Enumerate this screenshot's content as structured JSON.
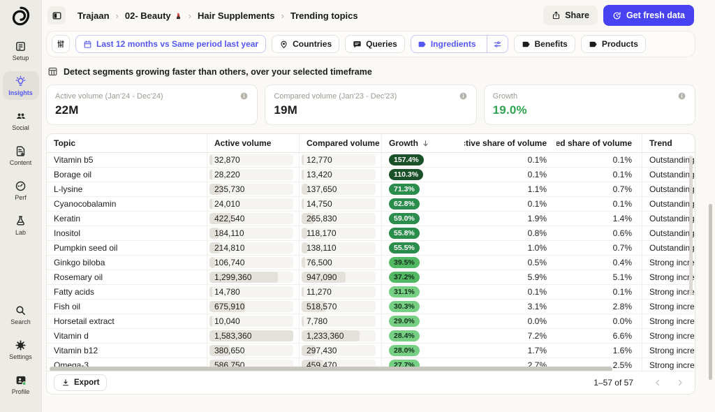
{
  "breadcrumb": {
    "separator": "›",
    "items": [
      "Trajaan",
      "02- Beauty",
      "Hair Supplements",
      "Trending topics"
    ]
  },
  "header": {
    "share_label": "Share",
    "refresh_label": "Get fresh data"
  },
  "filters": {
    "date_filter": "Last 12 months vs Same period last year",
    "countries": "Countries",
    "queries": "Queries",
    "ingredients": "Ingredients",
    "benefits": "Benefits",
    "products": "Products"
  },
  "sidebar": {
    "items": [
      {
        "label": "Setup"
      },
      {
        "label": "Insights",
        "active": true
      },
      {
        "label": "Social"
      },
      {
        "label": "Content"
      },
      {
        "label": "Perf"
      },
      {
        "label": "Lab"
      }
    ],
    "bottom_items": [
      {
        "label": "Search"
      },
      {
        "label": "Settings"
      },
      {
        "label": "Profile"
      }
    ]
  },
  "description": "Detect segments growing faster than others, over your selected timeframe",
  "stat_cards": [
    {
      "label": "Active volume (Jan'24 - Dec'24)",
      "value": "22M",
      "color": "#1b1b19"
    },
    {
      "label": "Compared volume (Jan'23 - Dec'23)",
      "value": "19M",
      "color": "#1b1b19"
    },
    {
      "label": "Growth",
      "value": "19.0%",
      "color": "#2fa452"
    }
  ],
  "table": {
    "columns": [
      "Topic",
      "Active volume",
      "Compared volume",
      "Growth",
      "Active share of volume",
      "Compared share of volume",
      "Trend"
    ],
    "sorted_by": "Growth",
    "growth_color_tiers": [
      {
        "min": 100,
        "bg": "#1a5129",
        "fg": "#ffffff"
      },
      {
        "min": 50,
        "bg": "#2a8d4b",
        "fg": "#ffffff"
      },
      {
        "min": 35,
        "bg": "#53b863",
        "fg": "#13301a"
      },
      {
        "min": 0,
        "bg": "#77cf84",
        "fg": "#13301a"
      }
    ],
    "rows": [
      {
        "topic": "Vitamin b5",
        "active_volume": "32,870",
        "compared_volume": "12,770",
        "growth": "157.4%",
        "active_share": "0.1%",
        "compared_share": "0.1%",
        "trend": "Outstanding"
      },
      {
        "topic": "Borage oil",
        "active_volume": "28,220",
        "compared_volume": "13,420",
        "growth": "110.3%",
        "active_share": "0.1%",
        "compared_share": "0.1%",
        "trend": "Outstanding"
      },
      {
        "topic": "L-lysine",
        "active_volume": "235,730",
        "compared_volume": "137,650",
        "growth": "71.3%",
        "active_share": "1.1%",
        "compared_share": "0.7%",
        "trend": "Outstanding"
      },
      {
        "topic": "Cyanocobalamin",
        "active_volume": "24,010",
        "compared_volume": "14,750",
        "growth": "62.8%",
        "active_share": "0.1%",
        "compared_share": "0.1%",
        "trend": "Outstanding"
      },
      {
        "topic": "Keratin",
        "active_volume": "422,540",
        "compared_volume": "265,830",
        "growth": "59.0%",
        "active_share": "1.9%",
        "compared_share": "1.4%",
        "trend": "Outstanding"
      },
      {
        "topic": "Inositol",
        "active_volume": "184,110",
        "compared_volume": "118,170",
        "growth": "55.8%",
        "active_share": "0.8%",
        "compared_share": "0.6%",
        "trend": "Outstanding"
      },
      {
        "topic": "Pumpkin seed oil",
        "active_volume": "214,810",
        "compared_volume": "138,110",
        "growth": "55.5%",
        "active_share": "1.0%",
        "compared_share": "0.7%",
        "trend": "Outstanding"
      },
      {
        "topic": "Ginkgo biloba",
        "active_volume": "106,740",
        "compared_volume": "76,500",
        "growth": "39.5%",
        "active_share": "0.5%",
        "compared_share": "0.4%",
        "trend": "Strong increase"
      },
      {
        "topic": "Rosemary oil",
        "active_volume": "1,299,360",
        "compared_volume": "947,090",
        "growth": "37.2%",
        "active_share": "5.9%",
        "compared_share": "5.1%",
        "trend": "Strong increase"
      },
      {
        "topic": "Fatty acids",
        "active_volume": "14,780",
        "compared_volume": "11,270",
        "growth": "31.1%",
        "active_share": "0.1%",
        "compared_share": "0.1%",
        "trend": "Strong increase"
      },
      {
        "topic": "Fish oil",
        "active_volume": "675,910",
        "compared_volume": "518,570",
        "growth": "30.3%",
        "active_share": "3.1%",
        "compared_share": "2.8%",
        "trend": "Strong increase"
      },
      {
        "topic": "Horsetail extract",
        "active_volume": "10,040",
        "compared_volume": "7,780",
        "growth": "29.0%",
        "active_share": "0.0%",
        "compared_share": "0.0%",
        "trend": "Strong increase"
      },
      {
        "topic": "Vitamin d",
        "active_volume": "1,583,360",
        "compared_volume": "1,233,360",
        "growth": "28.4%",
        "active_share": "7.2%",
        "compared_share": "6.6%",
        "trend": "Strong increase"
      },
      {
        "topic": "Vitamin b12",
        "active_volume": "380,650",
        "compared_volume": "297,430",
        "growth": "28.0%",
        "active_share": "1.7%",
        "compared_share": "1.6%",
        "trend": "Strong increase"
      },
      {
        "topic": "Omega-3",
        "active_volume": "586,750",
        "compared_volume": "459,470",
        "growth": "27.7%",
        "active_share": "2.7%",
        "compared_share": "2.5%",
        "trend": "Strong increase"
      }
    ],
    "footer": {
      "export_label": "Export",
      "pagination": "1–57 of 57"
    }
  }
}
